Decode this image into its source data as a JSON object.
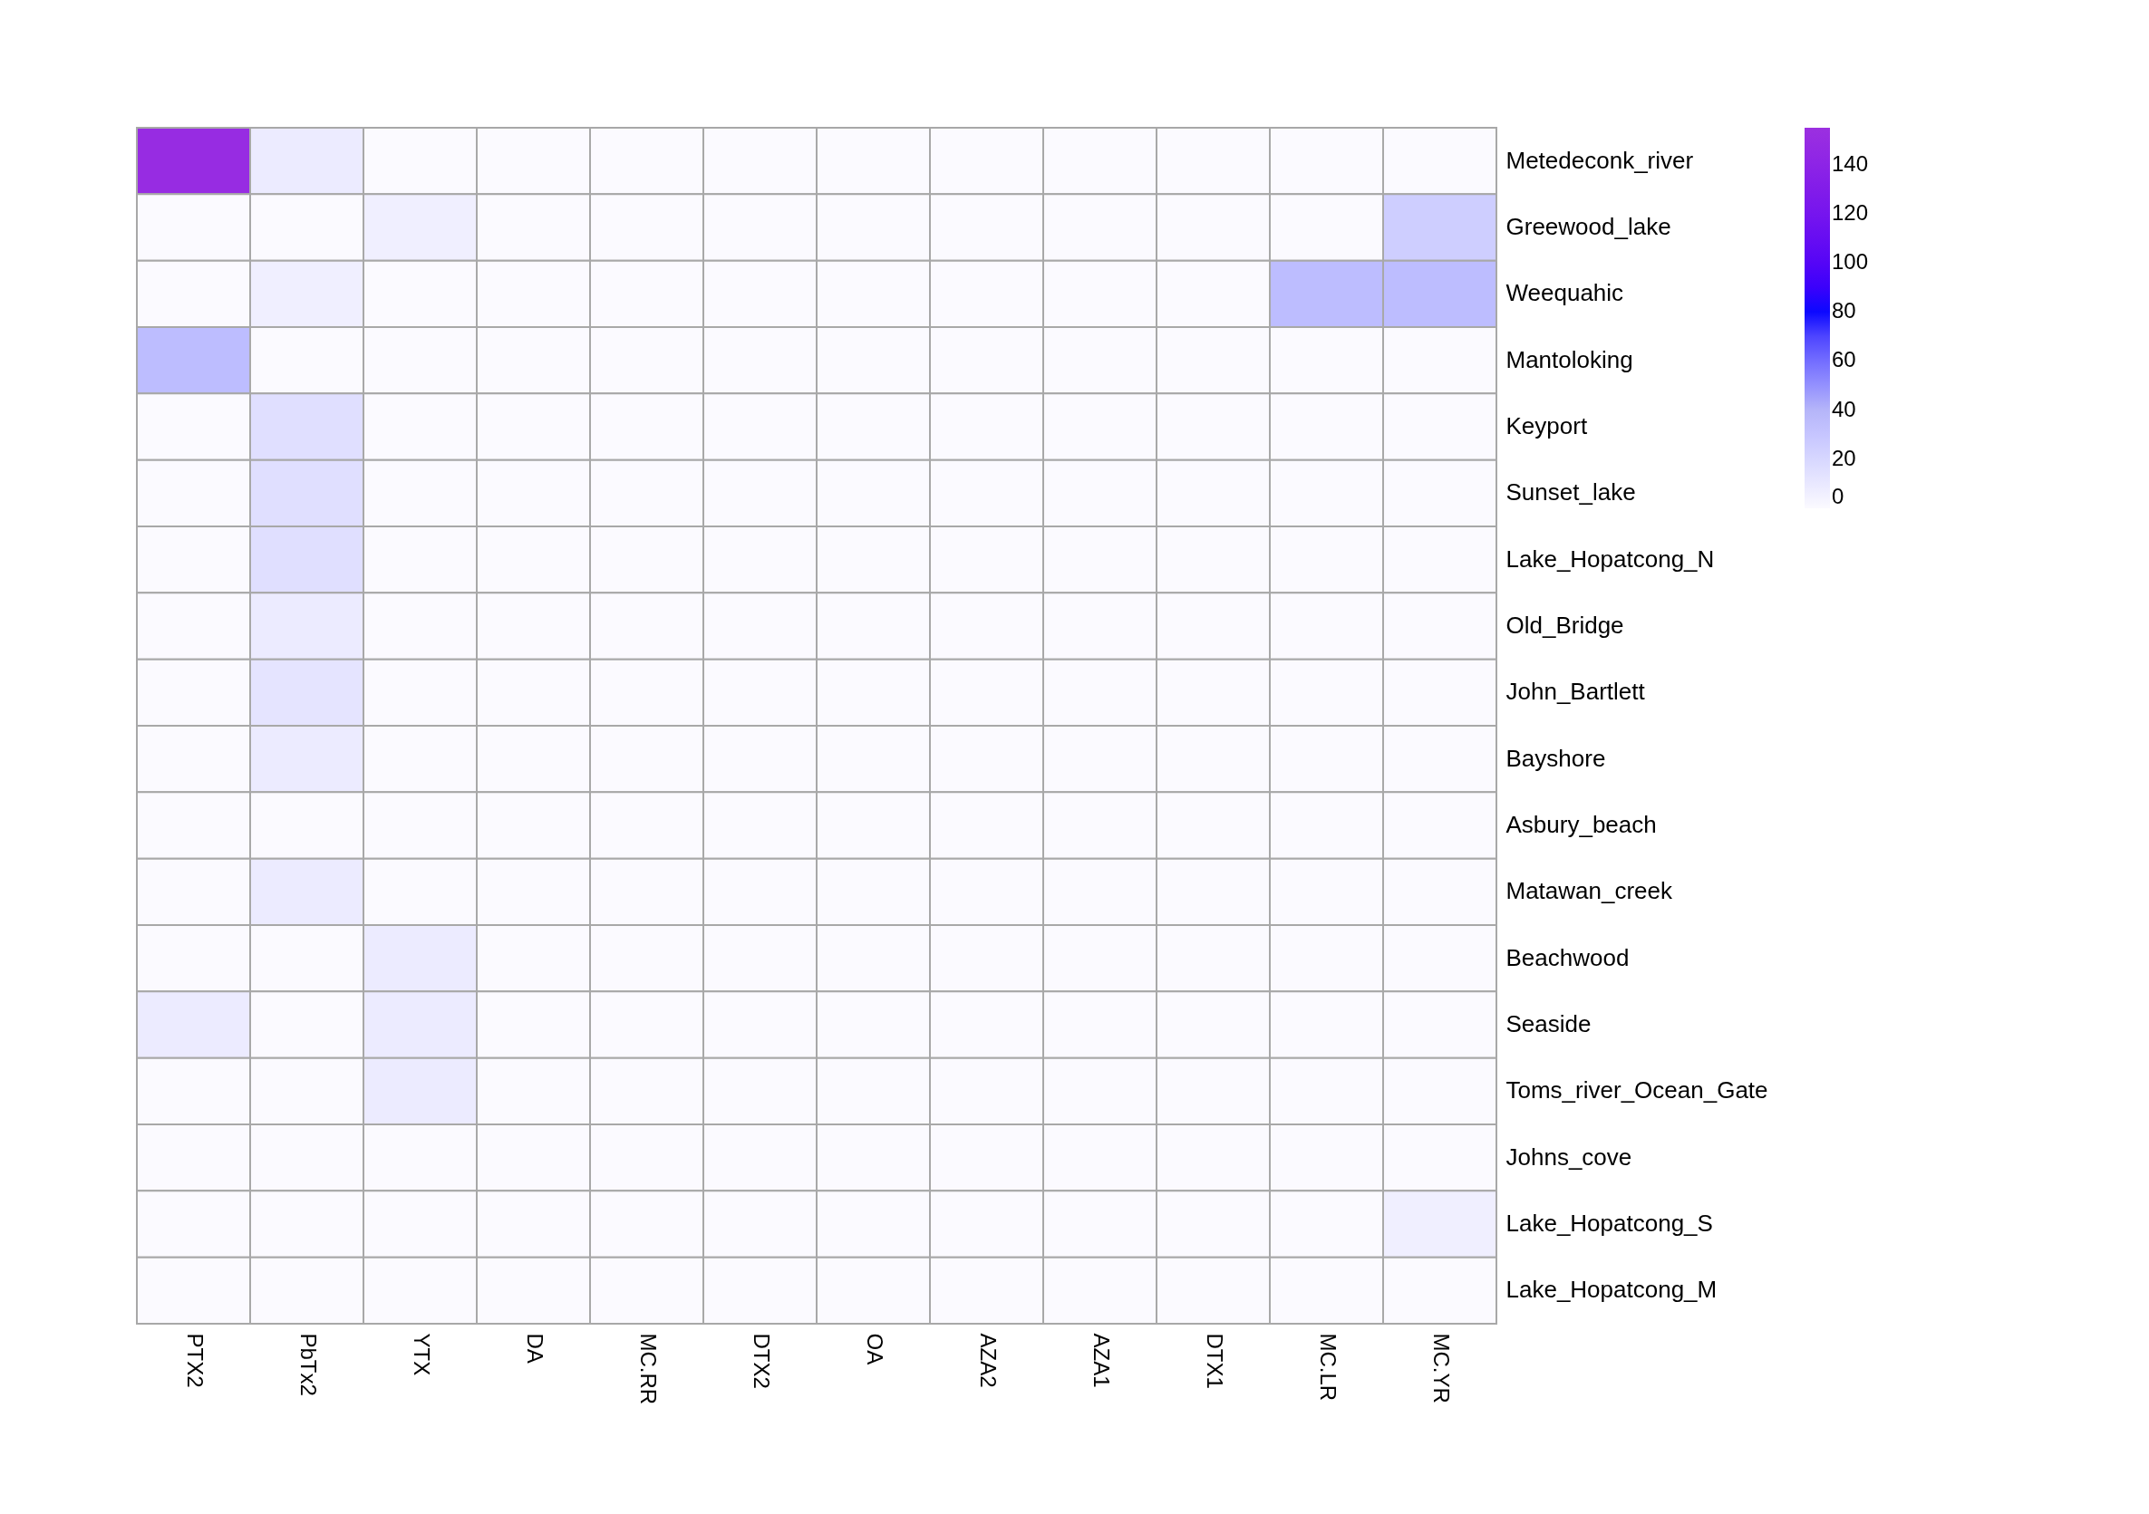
{
  "chart_data": {
    "type": "heatmap",
    "categories": [
      "PTX2",
      "PbTx2",
      "YTX",
      "DA",
      "MC.RR",
      "DTX2",
      "OA",
      "AZA2",
      "AZA1",
      "DTX1",
      "MC.LR",
      "MC.YR"
    ],
    "y_categories": [
      "Metedeconk_river",
      "Greewood_lake",
      "Weequahic",
      "Mantoloking",
      "Keyport",
      "Sunset_lake",
      "Lake_Hopatcong_N",
      "Old_Bridge",
      "John_Bartlett",
      "Bayshore",
      "Asbury_beach",
      "Matawan_creek",
      "Beachwood",
      "Seaside",
      "Toms_river_Ocean_Gate",
      "Johns_cove",
      "Lake_Hopatcong_S",
      "Lake_Hopatcong_M"
    ],
    "cells": [
      [
        150,
        8,
        0,
        0,
        0,
        0,
        0,
        0,
        0,
        0,
        0,
        0
      ],
      [
        0,
        0,
        6,
        0,
        0,
        0,
        0,
        0,
        0,
        0,
        0,
        25
      ],
      [
        0,
        6,
        0,
        0,
        0,
        0,
        0,
        0,
        0,
        0,
        35,
        35
      ],
      [
        35,
        0,
        0,
        0,
        0,
        0,
        0,
        0,
        0,
        0,
        0,
        0
      ],
      [
        0,
        15,
        0,
        0,
        0,
        0,
        0,
        0,
        0,
        0,
        0,
        0
      ],
      [
        0,
        15,
        0,
        0,
        0,
        0,
        0,
        0,
        0,
        0,
        0,
        0
      ],
      [
        0,
        15,
        0,
        0,
        0,
        0,
        0,
        0,
        0,
        0,
        0,
        0
      ],
      [
        0,
        8,
        0,
        0,
        0,
        0,
        0,
        0,
        0,
        0,
        0,
        0
      ],
      [
        0,
        12,
        0,
        0,
        0,
        0,
        0,
        0,
        0,
        0,
        0,
        0
      ],
      [
        0,
        8,
        0,
        0,
        0,
        0,
        0,
        0,
        0,
        0,
        0,
        0
      ],
      [
        0,
        0,
        0,
        0,
        0,
        0,
        0,
        0,
        0,
        0,
        0,
        0
      ],
      [
        0,
        8,
        0,
        0,
        0,
        0,
        0,
        0,
        0,
        0,
        0,
        0
      ],
      [
        0,
        0,
        8,
        0,
        0,
        0,
        0,
        0,
        0,
        0,
        0,
        0
      ],
      [
        8,
        0,
        8,
        0,
        0,
        0,
        0,
        0,
        0,
        0,
        0,
        0
      ],
      [
        0,
        0,
        8,
        0,
        0,
        0,
        0,
        0,
        0,
        0,
        0,
        0
      ],
      [
        0,
        0,
        0,
        0,
        0,
        0,
        0,
        0,
        0,
        0,
        0,
        0
      ],
      [
        0,
        0,
        0,
        0,
        0,
        0,
        0,
        0,
        0,
        0,
        0,
        6
      ],
      [
        0,
        0,
        0,
        0,
        0,
        0,
        0,
        0,
        0,
        0,
        0,
        0
      ]
    ],
    "clim": [
      0,
      155
    ],
    "cticks": [
      0,
      20,
      40,
      60,
      80,
      100,
      120,
      140
    ]
  }
}
